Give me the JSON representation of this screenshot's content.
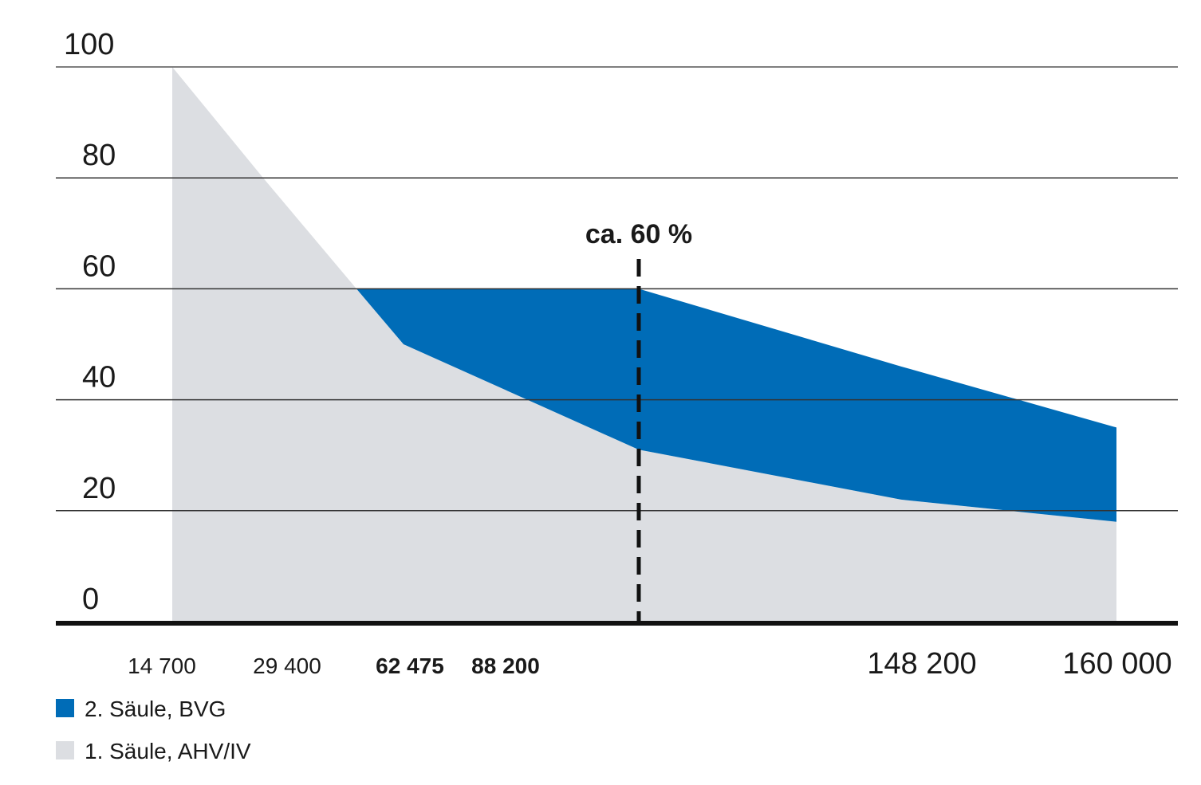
{
  "chart_data": {
    "type": "area",
    "stacked": true,
    "y_ticks": [
      "100",
      "80",
      "60",
      "40",
      "20",
      "0"
    ],
    "ylim": [
      0,
      100
    ],
    "grid": true,
    "x": [
      14700,
      29400,
      62475,
      88200,
      148200,
      160000
    ],
    "x_tick_labels": [
      {
        "value": "14 700",
        "emphasis": "normal"
      },
      {
        "value": "29 400",
        "emphasis": "normal"
      },
      {
        "value": "62 475",
        "emphasis": "bold"
      },
      {
        "value": "88 200",
        "emphasis": "bold"
      },
      {
        "value": "148 200",
        "emphasis": "large"
      },
      {
        "value": "160 000",
        "emphasis": "large"
      }
    ],
    "series": [
      {
        "name": "1. Säule, AHV/IV",
        "color": "#dcdee2",
        "points": [
          [
            14700,
            100
          ],
          [
            14700,
            100
          ],
          [
            29400,
            80
          ],
          [
            40000,
            60
          ],
          [
            62475,
            50
          ],
          [
            88200,
            31
          ],
          [
            148200,
            22
          ],
          [
            160000,
            18
          ]
        ]
      },
      {
        "name": "2. Säule, BVG",
        "color": "#006cb7",
        "upper": [
          [
            40000,
            60
          ],
          [
            88200,
            60
          ],
          [
            148200,
            46
          ],
          [
            160000,
            35
          ]
        ],
        "lower": [
          [
            40000,
            60
          ],
          [
            62475,
            50
          ],
          [
            88200,
            31
          ],
          [
            148200,
            22
          ],
          [
            160000,
            18
          ]
        ]
      }
    ],
    "annotation": {
      "label": "ca. 60 %",
      "x": 88200
    },
    "legend": {
      "position": "bottom-left",
      "items": [
        {
          "label": "2. Säule, BVG",
          "color": "#006cb7"
        },
        {
          "label": "1. Säule, AHV/IV",
          "color": "#dcdee2"
        }
      ]
    }
  }
}
